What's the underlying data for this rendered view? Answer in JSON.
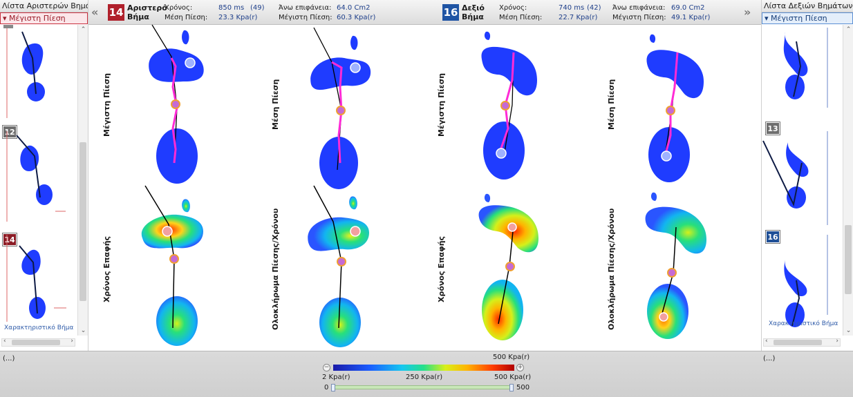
{
  "left_panel": {
    "title": "Λίστα Αριστερών Βημάτων",
    "mode": "Μέγιστη Πίεση",
    "steps": [
      {
        "num": ""
      },
      {
        "num": "12"
      },
      {
        "num": "14"
      }
    ],
    "characteristic": "Χαρακτηριστικό Βήμα"
  },
  "right_panel": {
    "title": "Λίστα Δεξιών Βημάτων",
    "mode": "Μέγιστη Πίεση",
    "steps": [
      {
        "num": ""
      },
      {
        "num": "13"
      },
      {
        "num": "16"
      }
    ],
    "characteristic": "Χαρακτηριστικό Βήμα"
  },
  "header": {
    "prev_symbol": "«",
    "next_symbol": "»",
    "left_step": {
      "number": "14",
      "label_line1": "Αριστερό",
      "label_line2": "Βήμα",
      "time_label": "Χρόνος:",
      "time_value": "850 ms",
      "time_count": "(49)",
      "mean_label": "Μέση Πίεση:",
      "mean_value": "23.3 Kpa(r)",
      "area_label": "Άνω επιφάνεια:",
      "area_value": "64.0 Cm2",
      "max_label": "Μέγιστη Πίεση:",
      "max_value": "60.3 Kpa(r)"
    },
    "right_step": {
      "number": "16",
      "label_line1": "Δεξιό",
      "label_line2": "Βήμα",
      "time_label": "Χρόνος:",
      "time_value": "740 ms",
      "time_count": "(42)",
      "mean_label": "Μέση Πίεση:",
      "mean_value": "22.7 Kpa(r)",
      "area_label": "Άνω επιφάνεια:",
      "area_value": "69.0 Cm2",
      "max_label": "Μέγιστη Πίεση:",
      "max_value": "49.1 Kpa(r)"
    }
  },
  "views": {
    "top_left_a": "Μέγιστη Πίεση",
    "top_left_b": "Μέση Πίεση",
    "top_right_a": "Μέγιστη Πίεση",
    "top_right_b": "Μέση Πίεση",
    "bottom_left_a": "Χρόνος Επαφής",
    "bottom_left_b": "Ολοκλήρωμα Πίεσης/Χρόνου",
    "bottom_right_a": "Χρόνος Επαφής",
    "bottom_right_b": "Ολοκλήρωμα Πίεσης/Χρόνου"
  },
  "bottom": {
    "left_ellipsis": "(...)",
    "right_ellipsis": "(...)",
    "scale_max_top": "500 Kpa(r)",
    "scale_min": "2 Kpa(r)",
    "scale_mid": "250 Kpa(r)",
    "scale_max": "500 Kpa(r)",
    "slider_min": "0",
    "slider_max": "500",
    "zoom_out": "−",
    "zoom_in": "+"
  },
  "colors": {
    "left_accent": "#b0202b",
    "right_accent": "#1f54a4",
    "foot_blue": "#1f3cff",
    "trajectory": "#ff2bd6"
  }
}
